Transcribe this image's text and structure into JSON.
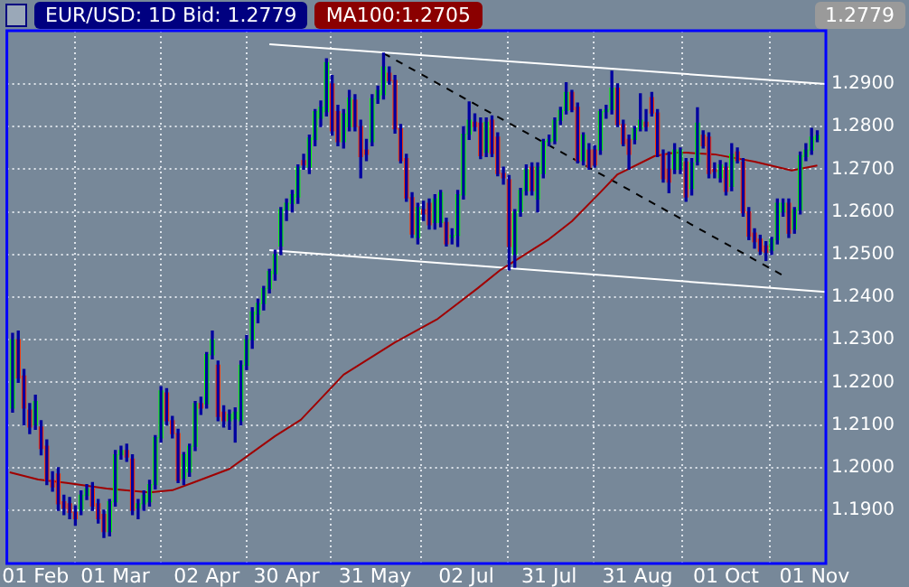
{
  "chart_data": {
    "type": "candlestick",
    "title": "EUR/USD: 1D Bid: 1.2779",
    "annotations": [
      "MA100:1.2705",
      "1.2779"
    ],
    "xlim": [
      "--01-22",
      "--11-05"
    ],
    "xticks": [
      {
        "value": "--02-01",
        "label": "01 Feb"
      },
      {
        "value": "--03-01",
        "label": "01 Mar"
      },
      {
        "value": "--04-02",
        "label": "02 Apr"
      },
      {
        "value": "--04-30",
        "label": "30 Apr"
      },
      {
        "value": "--05-31",
        "label": "31 May"
      },
      {
        "value": "--07-02",
        "label": "02 Jul"
      },
      {
        "value": "--07-31",
        "label": "31 Jul"
      },
      {
        "value": "--08-31",
        "label": "31 Aug"
      },
      {
        "value": "--10-01",
        "label": "01 Oct"
      },
      {
        "value": "--11-01",
        "label": "01 Nov"
      }
    ],
    "ylim": [
      1.1775,
      1.3025
    ],
    "yticks": [
      {
        "value": 1.19,
        "label": "1.1900"
      },
      {
        "value": 1.2,
        "label": "1.2000"
      },
      {
        "value": 1.21,
        "label": "1.2100"
      },
      {
        "value": 1.22,
        "label": "1.2200"
      },
      {
        "value": 1.23,
        "label": "1.2300"
      },
      {
        "value": 1.24,
        "label": "1.2400"
      },
      {
        "value": 1.25,
        "label": "1.2500"
      },
      {
        "value": 1.26,
        "label": "1.2600"
      },
      {
        "value": 1.27,
        "label": "1.2700"
      },
      {
        "value": 1.28,
        "label": "1.2800"
      },
      {
        "value": 1.29,
        "label": "1.2900"
      }
    ],
    "grid": true,
    "x": [
      "--01-24",
      "--01-26",
      "--01-28",
      "--01-30",
      "--02-01",
      "--02-03",
      "--02-05",
      "--02-07",
      "--02-09",
      "--02-11",
      "--02-13",
      "--02-15",
      "--02-17",
      "--02-19",
      "--02-21",
      "--02-23",
      "--02-25",
      "--02-27",
      "--03-01",
      "--03-03",
      "--03-05",
      "--03-07",
      "--03-09",
      "--03-11",
      "--03-13",
      "--03-15",
      "--03-17",
      "--03-19",
      "--03-21",
      "--03-23",
      "--03-25",
      "--03-27",
      "--03-29",
      "--03-31",
      "--04-02",
      "--04-04",
      "--04-06",
      "--04-08",
      "--04-10",
      "--04-12",
      "--04-14",
      "--04-16",
      "--04-18",
      "--04-20",
      "--04-22",
      "--04-24",
      "--04-26",
      "--04-28",
      "--04-30",
      "--05-02",
      "--05-04",
      "--05-06",
      "--05-08",
      "--05-10",
      "--05-12",
      "--05-14",
      "--05-16",
      "--05-18",
      "--05-20",
      "--05-22",
      "--05-24",
      "--05-26",
      "--05-28",
      "--05-30",
      "--06-01",
      "--06-03",
      "--06-05",
      "--06-07",
      "--06-09",
      "--06-11",
      "--06-13",
      "--06-15",
      "--06-17",
      "--06-19",
      "--06-21",
      "--06-23",
      "--06-25",
      "--06-27",
      "--06-29",
      "--07-01",
      "--07-03",
      "--07-05",
      "--07-07",
      "--07-09",
      "--07-11",
      "--07-13",
      "--07-15",
      "--07-17",
      "--07-19",
      "--07-21",
      "--07-23",
      "--07-25",
      "--07-27",
      "--07-29",
      "--07-31",
      "--08-02",
      "--08-04",
      "--08-06",
      "--08-08",
      "--08-10",
      "--08-12",
      "--08-14",
      "--08-16",
      "--08-18",
      "--08-20",
      "--08-22",
      "--08-24",
      "--08-26",
      "--08-28",
      "--08-30",
      "--09-01",
      "--09-03",
      "--09-05",
      "--09-07",
      "--09-09",
      "--09-11",
      "--09-13",
      "--09-15",
      "--09-17",
      "--09-19",
      "--09-21",
      "--09-23",
      "--09-25",
      "--09-27",
      "--09-29",
      "--10-01",
      "--10-03",
      "--10-05",
      "--10-07",
      "--10-09",
      "--10-11",
      "--10-13",
      "--10-15",
      "--10-17",
      "--10-19",
      "--10-21",
      "--10-23",
      "--10-25",
      "--10-27",
      "--10-29",
      "--10-31",
      "--11-02"
    ],
    "ohlc": [
      [
        1.214,
        1.2315,
        1.213,
        1.23
      ],
      [
        1.23,
        1.232,
        1.22,
        1.221
      ],
      [
        1.2215,
        1.223,
        1.21,
        1.214
      ],
      [
        1.2135,
        1.215,
        1.208,
        1.2095
      ],
      [
        1.21,
        1.217,
        1.209,
        1.2155
      ],
      [
        1.2095,
        1.211,
        1.203,
        1.2045
      ],
      [
        1.205,
        1.2065,
        1.196,
        1.197
      ],
      [
        1.197,
        1.199,
        1.1945,
        1.1955
      ],
      [
        1.1985,
        1.2,
        1.19,
        1.1915
      ],
      [
        1.192,
        1.1935,
        1.189,
        1.1905
      ],
      [
        1.1915,
        1.193,
        1.188,
        1.1895
      ],
      [
        1.1895,
        1.191,
        1.1865,
        1.188
      ],
      [
        1.19,
        1.1945,
        1.189,
        1.1935
      ],
      [
        1.1935,
        1.196,
        1.1925,
        1.195
      ],
      [
        1.195,
        1.1965,
        1.19,
        1.191
      ],
      [
        1.1915,
        1.1925,
        1.187,
        1.188
      ],
      [
        1.189,
        1.19,
        1.1836,
        1.185
      ],
      [
        1.185,
        1.1925,
        1.184,
        1.192
      ],
      [
        1.192,
        1.204,
        1.191,
        1.203
      ],
      [
        1.203,
        1.205,
        1.202,
        1.204
      ],
      [
        1.204,
        1.2055,
        1.2015,
        1.2025
      ],
      [
        1.202,
        1.203,
        1.189,
        1.19
      ],
      [
        1.1905,
        1.1925,
        1.188,
        1.1915
      ],
      [
        1.1915,
        1.1945,
        1.19,
        1.1935
      ],
      [
        1.192,
        1.197,
        1.191,
        1.196
      ],
      [
        1.196,
        1.2075,
        1.195,
        1.207
      ],
      [
        1.207,
        1.219,
        1.206,
        1.218
      ],
      [
        1.2175,
        1.2185,
        1.21,
        1.211
      ],
      [
        1.211,
        1.212,
        1.207,
        1.208
      ],
      [
        1.208,
        1.209,
        1.1965,
        1.197
      ],
      [
        1.1975,
        1.2035,
        1.196,
        1.203
      ],
      [
        1.199,
        1.2055,
        1.198,
        1.205
      ],
      [
        1.205,
        1.2155,
        1.204,
        1.215
      ],
      [
        1.215,
        1.2165,
        1.2125,
        1.214
      ],
      [
        1.215,
        1.227,
        1.214,
        1.2265
      ],
      [
        1.2265,
        1.232,
        1.2255,
        1.23
      ],
      [
        1.224,
        1.225,
        1.211,
        1.212
      ],
      [
        1.213,
        1.2145,
        1.2095,
        1.211
      ],
      [
        1.211,
        1.2135,
        1.209,
        1.2125
      ],
      [
        1.2115,
        1.214,
        1.206,
        1.213
      ],
      [
        1.211,
        1.225,
        1.21,
        1.224
      ],
      [
        1.224,
        1.231,
        1.223,
        1.23
      ],
      [
        1.23,
        1.2375,
        1.228,
        1.2365
      ],
      [
        1.236,
        1.2395,
        1.234,
        1.2385
      ],
      [
        1.2385,
        1.2425,
        1.237,
        1.242
      ],
      [
        1.242,
        1.2465,
        1.241,
        1.246
      ],
      [
        1.2455,
        1.251,
        1.244,
        1.25
      ],
      [
        1.252,
        1.261,
        1.25,
        1.2605
      ],
      [
        1.2605,
        1.263,
        1.258,
        1.262
      ],
      [
        1.262,
        1.265,
        1.26,
        1.264
      ],
      [
        1.2635,
        1.271,
        1.262,
        1.2705
      ],
      [
        1.272,
        1.2735,
        1.27,
        1.271
      ],
      [
        1.2705,
        1.278,
        1.269,
        1.2773
      ],
      [
        1.277,
        1.284,
        1.2755,
        1.2835
      ],
      [
        1.282,
        1.286,
        1.28,
        1.2845
      ],
      [
        1.2835,
        1.2959,
        1.2825,
        1.295
      ],
      [
        1.29,
        1.292,
        1.278,
        1.279
      ],
      [
        1.2835,
        1.285,
        1.2755,
        1.2765
      ],
      [
        1.2765,
        1.284,
        1.275,
        1.283
      ],
      [
        1.28,
        1.2885,
        1.279,
        1.2867
      ],
      [
        1.2862,
        1.2875,
        1.279,
        1.28
      ],
      [
        1.28,
        1.2815,
        1.268,
        1.273
      ],
      [
        1.2745,
        1.277,
        1.272,
        1.2735
      ],
      [
        1.2765,
        1.2875,
        1.2755,
        1.2865
      ],
      [
        1.2865,
        1.2895,
        1.2855,
        1.2885
      ],
      [
        1.2875,
        1.2972,
        1.2865,
        1.294
      ],
      [
        1.2925,
        1.294,
        1.29,
        1.2908
      ],
      [
        1.2908,
        1.292,
        1.2785,
        1.2795
      ],
      [
        1.2795,
        1.2805,
        1.2715,
        1.272
      ],
      [
        1.2725,
        1.2735,
        1.2625,
        1.2633
      ],
      [
        1.2633,
        1.2645,
        1.254,
        1.2548
      ],
      [
        1.254,
        1.262,
        1.2525,
        1.261
      ],
      [
        1.2605,
        1.2625,
        1.258,
        1.2595
      ],
      [
        1.262,
        1.263,
        1.256,
        1.257
      ],
      [
        1.2575,
        1.264,
        1.256,
        1.263
      ],
      [
        1.2575,
        1.265,
        1.2565,
        1.2645
      ],
      [
        1.2575,
        1.2585,
        1.252,
        1.2525
      ],
      [
        1.254,
        1.256,
        1.2525,
        1.2545
      ],
      [
        1.2545,
        1.265,
        1.2519,
        1.264
      ],
      [
        1.264,
        1.28,
        1.263,
        1.2782
      ],
      [
        1.2782,
        1.2858,
        1.277,
        1.2815
      ],
      [
        1.281,
        1.283,
        1.279,
        1.28
      ],
      [
        1.2808,
        1.282,
        1.2725,
        1.2732
      ],
      [
        1.274,
        1.282,
        1.273,
        1.281
      ],
      [
        1.2815,
        1.2825,
        1.273,
        1.2737
      ],
      [
        1.2775,
        1.2785,
        1.2685,
        1.269
      ],
      [
        1.269,
        1.2705,
        1.2665,
        1.268
      ],
      [
        1.2675,
        1.2685,
        1.2464,
        1.2519
      ],
      [
        1.25,
        1.2605,
        1.247,
        1.26
      ],
      [
        1.26,
        1.2655,
        1.259,
        1.265
      ],
      [
        1.265,
        1.271,
        1.264,
        1.27
      ],
      [
        1.2705,
        1.2715,
        1.264,
        1.265
      ],
      [
        1.263,
        1.2715,
        1.26,
        1.2705
      ],
      [
        1.269,
        1.277,
        1.268,
        1.2765
      ],
      [
        1.2765,
        1.278,
        1.2755,
        1.277
      ],
      [
        1.2767,
        1.282,
        1.276,
        1.2815
      ],
      [
        1.2815,
        1.2845,
        1.2805,
        1.2838
      ],
      [
        1.2838,
        1.2903,
        1.283,
        1.288
      ],
      [
        1.288,
        1.2885,
        1.2835,
        1.284
      ],
      [
        1.2845,
        1.2855,
        1.2715,
        1.272
      ],
      [
        1.272,
        1.2785,
        1.271,
        1.278
      ],
      [
        1.2745,
        1.276,
        1.27,
        1.2705
      ],
      [
        1.2745,
        1.2755,
        1.2705,
        1.271
      ],
      [
        1.2745,
        1.284,
        1.2735,
        1.2835
      ],
      [
        1.2835,
        1.285,
        1.282,
        1.284
      ],
      [
        1.284,
        1.293,
        1.283,
        1.289
      ],
      [
        1.289,
        1.29,
        1.28,
        1.2805
      ],
      [
        1.2805,
        1.2815,
        1.2755,
        1.276
      ],
      [
        1.277,
        1.278,
        1.27,
        1.2735
      ],
      [
        1.277,
        1.28,
        1.276,
        1.2795
      ],
      [
        1.2795,
        1.2877,
        1.279,
        1.2815
      ],
      [
        1.281,
        1.284,
        1.279,
        1.28
      ],
      [
        1.2868,
        1.288,
        1.2825,
        1.2832
      ],
      [
        1.2832,
        1.284,
        1.273,
        1.2735
      ],
      [
        1.2735,
        1.2745,
        1.267,
        1.2678
      ],
      [
        1.27,
        1.274,
        1.2645,
        1.267
      ],
      [
        1.27,
        1.276,
        1.269,
        1.2745
      ],
      [
        1.27,
        1.275,
        1.269,
        1.2745
      ],
      [
        1.2717,
        1.2725,
        1.2625,
        1.2635
      ],
      [
        1.2655,
        1.2725,
        1.264,
        1.2715
      ],
      [
        1.2718,
        1.2844,
        1.271,
        1.2808
      ],
      [
        1.278,
        1.279,
        1.275,
        1.2755
      ],
      [
        1.2775,
        1.2785,
        1.268,
        1.269
      ],
      [
        1.27,
        1.2715,
        1.268,
        1.2695
      ],
      [
        1.268,
        1.272,
        1.267,
        1.271
      ],
      [
        1.2705,
        1.2715,
        1.264,
        1.2648
      ],
      [
        1.266,
        1.276,
        1.265,
        1.2735
      ],
      [
        1.274,
        1.275,
        1.2715,
        1.272
      ],
      [
        1.2717,
        1.2725,
        1.259,
        1.2598
      ],
      [
        1.26,
        1.261,
        1.2535,
        1.2543
      ],
      [
        1.255,
        1.256,
        1.2515,
        1.253
      ],
      [
        1.2536,
        1.2545,
        1.25,
        1.2508
      ],
      [
        1.252,
        1.253,
        1.2486,
        1.2505
      ],
      [
        1.251,
        1.254,
        1.25,
        1.2535
      ],
      [
        1.2535,
        1.263,
        1.2525,
        1.262
      ],
      [
        1.26,
        1.263,
        1.259,
        1.262
      ],
      [
        1.262,
        1.263,
        1.254,
        1.255
      ],
      [
        1.256,
        1.261,
        1.255,
        1.2605
      ],
      [
        1.2605,
        1.274,
        1.2595,
        1.2732
      ],
      [
        1.273,
        1.276,
        1.272,
        1.2745
      ],
      [
        1.2745,
        1.2796,
        1.2735,
        1.2775
      ],
      [
        1.277,
        1.279,
        1.2765,
        1.2779
      ]
    ],
    "series": [
      {
        "type": "line",
        "color": "#a00000",
        "x": [
          "--01-23",
          "--02-02",
          "--02-12",
          "--02-26",
          "--03-13",
          "--03-21",
          "--03-28",
          "--04-10",
          "--04-26",
          "--05-05",
          "--05-20",
          "--06-07",
          "--06-22",
          "--07-06",
          "--07-14",
          "--07-31",
          "--08-08",
          "--08-18",
          "--08-24",
          "--09-06",
          "--09-13",
          "--09-17",
          "--09-27",
          "--10-11",
          "--10-24",
          "--11-02"
        ],
        "values": [
          1.1989,
          1.1972,
          1.1964,
          1.1951,
          1.1942,
          1.1947,
          1.1964,
          1.1997,
          1.2074,
          1.2112,
          1.2218,
          1.2294,
          1.2349,
          1.2421,
          1.2464,
          1.2536,
          1.2578,
          1.2646,
          1.2688,
          1.2731,
          1.2739,
          1.2739,
          1.2735,
          1.2718,
          1.2697,
          1.2709
        ]
      },
      {
        "type": "line",
        "color": "#ffffff",
        "x": [
          "--04-24",
          "--11-05"
        ],
        "values": [
          1.2993,
          1.29
        ]
      },
      {
        "type": "line",
        "color": "#ffffff",
        "x": [
          "--04-24",
          "--11-05"
        ],
        "values": [
          1.251,
          1.2412
        ]
      },
      {
        "type": "line",
        "color": "#000000",
        "line_style": "dashed",
        "x": [
          "--06-03",
          "--10-22"
        ],
        "values": [
          1.2972,
          1.2447
        ]
      }
    ]
  }
}
